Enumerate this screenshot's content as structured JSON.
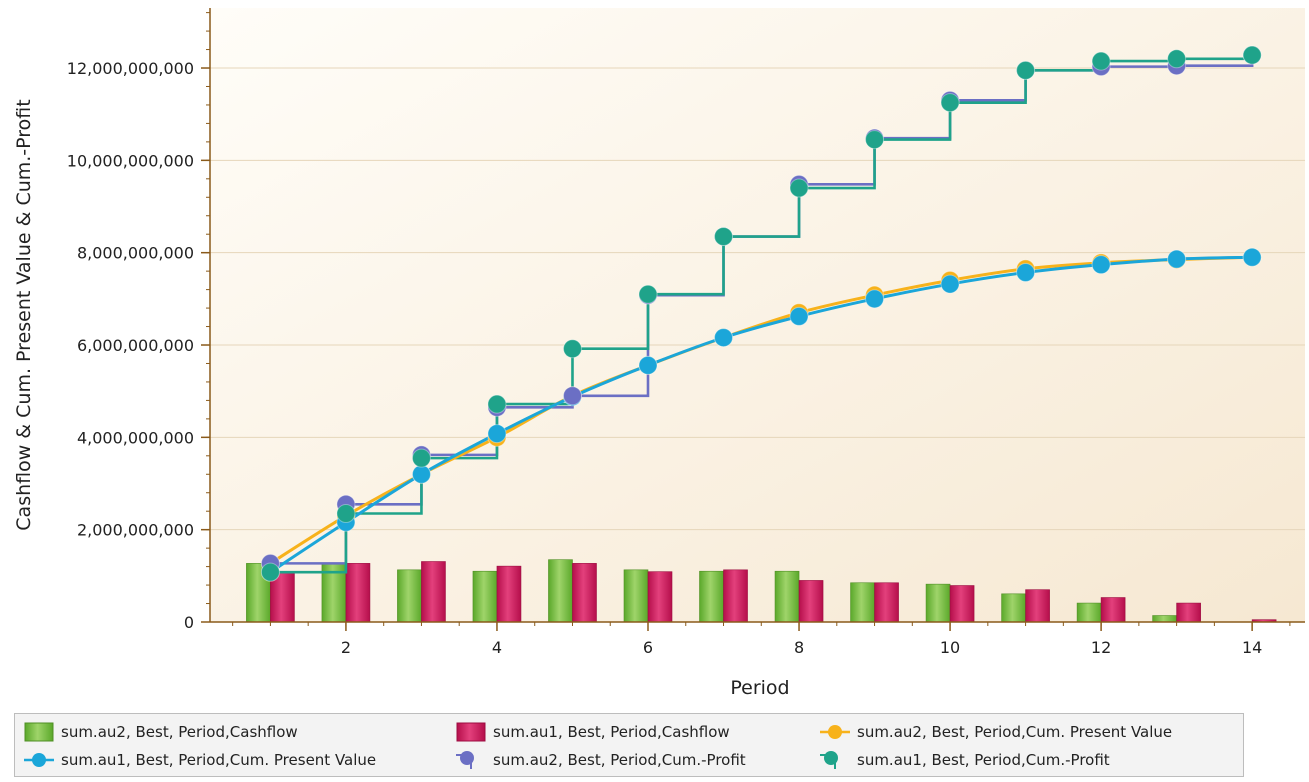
{
  "chart_data": {
    "type": "bar",
    "xlabel": "Period",
    "ylabel": "Cashflow & Cum. Present Value & Cum.-Profit",
    "xlim": [
      0.2,
      14.7
    ],
    "ylim": [
      0,
      13300000000
    ],
    "x_ticks": [
      2,
      4,
      6,
      8,
      10,
      12,
      14
    ],
    "y_ticks": [
      0,
      2000000000,
      4000000000,
      6000000000,
      8000000000,
      10000000000,
      12000000000
    ],
    "y_tick_labels": [
      "0",
      "2,000,000,000",
      "4,000,000,000",
      "6,000,000,000",
      "8,000,000,000",
      "10,000,000,000",
      "12,000,000,000"
    ],
    "x": [
      1,
      2,
      3,
      4,
      5,
      6,
      7,
      8,
      9,
      10,
      11,
      12,
      13,
      14
    ],
    "grid": "horizontal",
    "legend_position": "bottom",
    "series": [
      {
        "name": "sum.au2, Best, Period,Cashflow",
        "kind": "bar",
        "color": "#7cc242",
        "values": [
          1270000000,
          1270000000,
          1130000000,
          1100000000,
          1350000000,
          1130000000,
          1100000000,
          1100000000,
          850000000,
          820000000,
          610000000,
          410000000,
          140000000,
          0
        ]
      },
      {
        "name": "sum.au1, Best, Period,Cashflow",
        "kind": "bar",
        "color": "#d4145a",
        "values": [
          1080000000,
          1270000000,
          1310000000,
          1210000000,
          1270000000,
          1090000000,
          1130000000,
          900000000,
          850000000,
          790000000,
          700000000,
          530000000,
          410000000,
          50000000
        ]
      },
      {
        "name": "sum.au2, Best, Period,Cum. Present Value",
        "kind": "line",
        "color": "#f7b21b",
        "values": [
          1270000000,
          2300000000,
          3200000000,
          4000000000,
          4900000000,
          5560000000,
          6160000000,
          6700000000,
          7080000000,
          7400000000,
          7650000000,
          7780000000,
          7850000000,
          7900000000
        ]
      },
      {
        "name": "sum.au1, Best, Period,Cum. Present Value",
        "kind": "line",
        "color": "#1ba6d9",
        "values": [
          1080000000,
          2160000000,
          3200000000,
          4080000000,
          4880000000,
          5560000000,
          6160000000,
          6620000000,
          7000000000,
          7320000000,
          7570000000,
          7740000000,
          7860000000,
          7900000000
        ]
      },
      {
        "name": "sum.au2, Best, Period,Cum.-Profit",
        "kind": "step",
        "color": "#6b6fc4",
        "values": [
          1270000000,
          2550000000,
          3620000000,
          4650000000,
          4900000000,
          7080000000,
          8350000000,
          9480000000,
          10480000000,
          11300000000,
          11950000000,
          12030000000,
          12050000000,
          12280000000
        ]
      },
      {
        "name": "sum.au1, Best, Period,Cum.-Profit",
        "kind": "step",
        "color": "#1fa38a",
        "values": [
          1080000000,
          2350000000,
          3550000000,
          4720000000,
          5920000000,
          7100000000,
          8350000000,
          9400000000,
          10450000000,
          11250000000,
          11950000000,
          12150000000,
          12200000000,
          12280000000
        ]
      }
    ]
  }
}
